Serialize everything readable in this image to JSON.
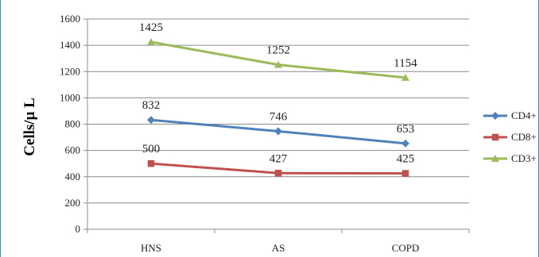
{
  "chart_data": {
    "type": "line",
    "title": "",
    "xlabel": "",
    "ylabel": "Cells/μ L",
    "categories": [
      "HNS",
      "AS",
      "COPD"
    ],
    "ylim": [
      0,
      1600
    ],
    "yticks": [
      0,
      200,
      400,
      600,
      800,
      1000,
      1200,
      1400,
      1600
    ],
    "grid": true,
    "legend_position": "right",
    "series": [
      {
        "name": "CD4+",
        "values": [
          832,
          746,
          653
        ],
        "labels": [
          "832",
          "746",
          "653"
        ],
        "color": "#4f81bd",
        "marker": "diamond"
      },
      {
        "name": "CD8+",
        "values": [
          500,
          427,
          425
        ],
        "labels": [
          "500",
          "427",
          "425"
        ],
        "color": "#c0504d",
        "marker": "square"
      },
      {
        "name": "CD3+",
        "values": [
          1425,
          1252,
          1154
        ],
        "labels": [
          "1425",
          "1252",
          "1154"
        ],
        "color": "#9bbb59",
        "marker": "triangle"
      }
    ]
  }
}
